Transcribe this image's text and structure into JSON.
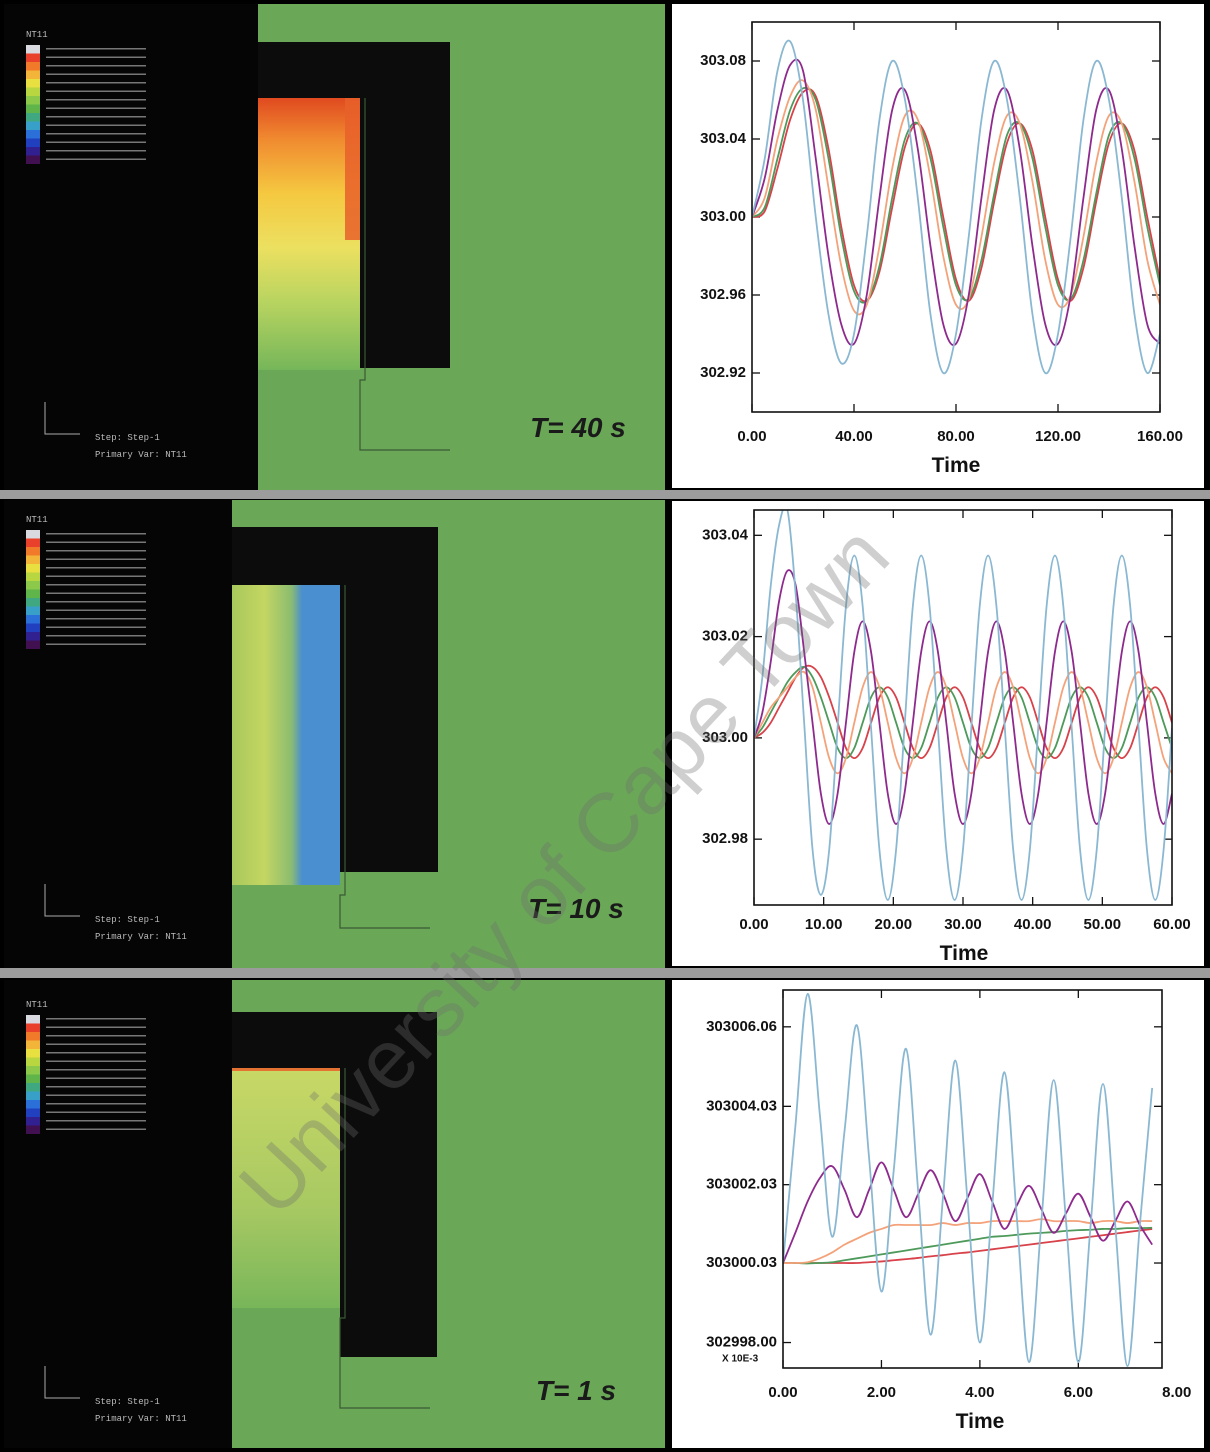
{
  "panels": [
    {
      "label": "T= 40 s",
      "legend_title": "NT11",
      "step": "Step: Step-1",
      "primary_var": "Primary Var: NT11"
    },
    {
      "label": "T= 10 s",
      "legend_title": "NT11",
      "step": "Step: Step-1",
      "primary_var": "Primary Var: NT11"
    },
    {
      "label": "T= 1 s",
      "legend_title": "NT11",
      "step": "Step: Step-1",
      "primary_var": "Primary Var: NT11"
    }
  ],
  "watermark": "University of Cape Town",
  "chart_data": [
    {
      "type": "line",
      "x_label": "Time",
      "x": [
        0,
        5,
        10,
        15,
        20,
        25,
        30,
        35,
        40,
        45,
        50,
        55,
        60,
        65,
        70,
        75,
        80,
        85,
        90,
        95,
        100,
        105,
        110,
        115,
        120,
        125,
        130,
        135,
        140,
        145,
        150,
        155,
        160
      ],
      "xlim": [
        0,
        160
      ],
      "xticks": [
        {
          "value": 0,
          "label": "0.00"
        },
        {
          "value": 40,
          "label": "40.00"
        },
        {
          "value": 80,
          "label": "80.00"
        },
        {
          "value": 120,
          "label": "120.00"
        },
        {
          "value": 160,
          "label": "160.00"
        }
      ],
      "ylim": [
        302.9,
        303.1
      ],
      "yticks": [
        302.92,
        302.96,
        {
          "value": 303,
          "label": "303.00"
        },
        303.04,
        303.08
      ],
      "series": [
        {
          "color": "#8ab8d2",
          "values": [
            303,
            303.03,
            303.075,
            303.09,
            303.06,
            303,
            302.95,
            302.925,
            302.94,
            302.99,
            303.05,
            303.08,
            303.06,
            303.01,
            302.95,
            302.92,
            302.94,
            302.99,
            303.05,
            303.08,
            303.06,
            303.01,
            302.95,
            302.92,
            302.94,
            302.99,
            303.05,
            303.08,
            303.06,
            303.01,
            302.95,
            302.92,
            302.94
          ]
        },
        {
          "color": "#8e2a8e",
          "values": [
            303,
            303.02,
            303.055,
            303.078,
            303.075,
            303.03,
            302.98,
            302.945,
            302.935,
            302.96,
            303.01,
            303.055,
            303.065,
            303.035,
            302.985,
            302.945,
            302.935,
            302.96,
            303.01,
            303.055,
            303.065,
            303.035,
            302.985,
            302.945,
            302.935,
            302.96,
            303.01,
            303.055,
            303.065,
            303.035,
            302.985,
            302.945,
            302.935
          ]
        },
        {
          "color": "#f4a27a",
          "values": [
            303,
            303.01,
            303.04,
            303.062,
            303.07,
            303.055,
            303.015,
            302.975,
            302.952,
            302.955,
            302.985,
            303.025,
            303.052,
            303.05,
            303.02,
            302.98,
            302.955,
            302.958,
            302.99,
            303.028,
            303.052,
            303.048,
            303.018,
            302.978,
            302.955,
            302.96,
            302.99,
            303.028,
            303.052,
            303.048,
            303.018,
            302.978,
            302.955
          ]
        },
        {
          "color": "#4e9a5a",
          "values": [
            303,
            303.005,
            303.03,
            303.055,
            303.066,
            303.06,
            303.03,
            302.99,
            302.962,
            302.957,
            302.975,
            303.01,
            303.04,
            303.048,
            303.03,
            302.995,
            302.965,
            302.958,
            302.978,
            303.012,
            303.042,
            303.048,
            303.03,
            302.995,
            302.965,
            302.958,
            302.978,
            303.012,
            303.042,
            303.048,
            303.03,
            302.995,
            302.965
          ]
        },
        {
          "color": "#d8424a",
          "values": [
            303,
            303.003,
            303.025,
            303.05,
            303.064,
            303.062,
            303.035,
            302.995,
            302.965,
            302.957,
            302.972,
            303.005,
            303.036,
            303.048,
            303.034,
            303,
            302.968,
            302.957,
            302.974,
            303.008,
            303.038,
            303.048,
            303.034,
            303,
            302.968,
            302.957,
            302.974,
            303.008,
            303.038,
            303.048,
            303.034,
            303,
            302.968
          ]
        }
      ]
    },
    {
      "type": "line",
      "x_label": "Time",
      "x": [
        0,
        1.2,
        2.4,
        3.6,
        4.8,
        6,
        7.2,
        8.4,
        9.6,
        10.8,
        12,
        13.2,
        14.4,
        15.6,
        16.8,
        18,
        19.2,
        20.4,
        21.6,
        22.8,
        24,
        25.2,
        26.4,
        27.6,
        28.8,
        30,
        31.2,
        32.4,
        33.6,
        34.8,
        36,
        37.2,
        38.4,
        39.6,
        40.8,
        42,
        43.2,
        44.4,
        45.6,
        46.8,
        48,
        49.2,
        50.4,
        51.6,
        52.8,
        54,
        55.2,
        56.4,
        57.6,
        58.8,
        60
      ],
      "xlim": [
        0,
        60
      ],
      "xticks": [
        {
          "value": 0,
          "label": "0.00"
        },
        {
          "value": 10,
          "label": "10.00"
        },
        {
          "value": 20,
          "label": "20.00"
        },
        {
          "value": 30,
          "label": "30.00"
        },
        {
          "value": 40,
          "label": "40.00"
        },
        {
          "value": 50,
          "label": "50.00"
        },
        {
          "value": 60,
          "label": "60.00"
        }
      ],
      "ylim": [
        302.967,
        303.045
      ],
      "yticks": [
        302.98,
        {
          "value": 303,
          "label": "303.00"
        },
        303.02,
        303.04
      ],
      "series": [
        {
          "color": "#8ab8d2",
          "values": [
            303,
            303.012,
            303.03,
            303.042,
            303.045,
            303.028,
            303.003,
            302.978,
            302.969,
            302.978,
            303.002,
            303.026,
            303.036,
            303.026,
            303.002,
            302.978,
            302.968,
            302.978,
            303.002,
            303.026,
            303.036,
            303.026,
            303.002,
            302.978,
            302.968,
            302.978,
            303.002,
            303.026,
            303.036,
            303.026,
            303.002,
            302.978,
            302.968,
            302.978,
            303.002,
            303.026,
            303.036,
            303.026,
            303.002,
            302.978,
            302.968,
            302.978,
            303.002,
            303.026,
            303.036,
            303.026,
            303.002,
            302.978,
            302.968,
            302.978,
            303.002
          ]
        },
        {
          "color": "#8e2a8e",
          "values": [
            303,
            303.005,
            303.015,
            303.027,
            303.033,
            303.03,
            303.017,
            303.003,
            302.989,
            302.983,
            302.989,
            303.003,
            303.017,
            303.023,
            303.017,
            303.003,
            302.989,
            302.983,
            302.989,
            303.003,
            303.017,
            303.023,
            303.017,
            303.003,
            302.989,
            302.983,
            302.989,
            303.003,
            303.017,
            303.023,
            303.017,
            303.003,
            302.989,
            302.983,
            302.989,
            303.003,
            303.017,
            303.023,
            303.017,
            303.003,
            302.989,
            302.983,
            302.989,
            303.003,
            303.017,
            303.023,
            303.017,
            303.003,
            302.989,
            302.983,
            302.989
          ]
        },
        {
          "color": "#f4a27a",
          "values": [
            303,
            303.003,
            303.006,
            303.008,
            303.01,
            303.012,
            303.013,
            303.01,
            303.003,
            302.996,
            302.993,
            302.996,
            303.003,
            303.01,
            303.013,
            303.01,
            303.003,
            302.996,
            302.993,
            302.996,
            303.003,
            303.01,
            303.013,
            303.01,
            303.003,
            302.996,
            302.993,
            302.996,
            303.003,
            303.01,
            303.013,
            303.01,
            303.003,
            302.996,
            302.993,
            302.996,
            303.003,
            303.01,
            303.013,
            303.01,
            303.003,
            302.996,
            302.993,
            302.996,
            303.003,
            303.01,
            303.013,
            303.01,
            303.003,
            302.996,
            302.993
          ]
        },
        {
          "color": "#4e9a5a",
          "values": [
            303,
            303.002,
            303.005,
            303.008,
            303.011,
            303.013,
            303.014,
            303.012,
            303.008,
            303.003,
            302.998,
            302.996,
            302.998,
            303.003,
            303.008,
            303.01,
            303.008,
            303.003,
            302.998,
            302.996,
            302.998,
            303.003,
            303.008,
            303.01,
            303.008,
            303.003,
            302.998,
            302.996,
            302.998,
            303.003,
            303.008,
            303.01,
            303.008,
            303.003,
            302.998,
            302.996,
            302.998,
            303.003,
            303.008,
            303.01,
            303.008,
            303.003,
            302.998,
            302.996,
            302.998,
            303.003,
            303.008,
            303.01,
            303.008,
            303.003,
            302.998
          ]
        },
        {
          "color": "#d8424a",
          "values": [
            303,
            303.001,
            303.003,
            303.006,
            303.009,
            303.012,
            303.014,
            303.014,
            303.012,
            303.008,
            303.003,
            302.998,
            302.996,
            302.998,
            303.003,
            303.008,
            303.01,
            303.008,
            303.003,
            302.998,
            302.996,
            302.998,
            303.003,
            303.008,
            303.01,
            303.008,
            303.003,
            302.998,
            302.996,
            302.998,
            303.003,
            303.008,
            303.01,
            303.008,
            303.003,
            302.998,
            302.996,
            302.998,
            303.003,
            303.008,
            303.01,
            303.008,
            303.003,
            302.998,
            302.996,
            302.998,
            303.003,
            303.008,
            303.01,
            303.008,
            303.003
          ]
        }
      ]
    },
    {
      "type": "line",
      "x_label": "Time",
      "annotation": "X 10E-3",
      "x": [
        0,
        0.25,
        0.5,
        0.75,
        1,
        1.25,
        1.5,
        1.75,
        2,
        2.25,
        2.5,
        2.75,
        3,
        3.25,
        3.5,
        3.75,
        4,
        4.25,
        4.5,
        4.75,
        5,
        5.25,
        5.5,
        5.75,
        6,
        6.25,
        6.5,
        6.75,
        7,
        7.25,
        7.5
      ],
      "xlim": [
        0,
        7.7
      ],
      "xticks": [
        {
          "value": 0,
          "label": "0.00"
        },
        {
          "value": 2,
          "label": "2.00"
        },
        {
          "value": 4,
          "label": "4.00"
        },
        {
          "value": 6,
          "label": "6.00"
        },
        {
          "value": 8,
          "label": "8.00"
        }
      ],
      "ylim": [
        302997.35,
        303007
      ],
      "yticks": [
        {
          "value": 302998,
          "label": "302998.00"
        },
        303000.03,
        303002.03,
        303004.03,
        303006.06
      ],
      "series": [
        {
          "color": "#8ab8d2",
          "values": [
            303000.03,
            303003.5,
            303006.9,
            303003.8,
            303000.7,
            303003.4,
            303006.1,
            303002.7,
            302999.3,
            303002.4,
            303005.5,
            303001.8,
            302998.2,
            303001.7,
            303005.2,
            303001.6,
            302998,
            303001.5,
            303004.9,
            303001.2,
            302997.5,
            303001.1,
            303004.7,
            303001.1,
            302997.5,
            303001,
            303004.6,
            303001,
            302997.4,
            303001,
            303004.5
          ]
        },
        {
          "color": "#8e2a8e",
          "values": [
            303000.03,
            303000.8,
            303001.6,
            303002.2,
            303002.5,
            303001.9,
            303001.2,
            303001.9,
            303002.6,
            303001.9,
            303001.2,
            303001.8,
            303002.4,
            303001.8,
            303001.1,
            303001.7,
            303002.3,
            303001.6,
            303000.9,
            303001.5,
            303002,
            303001.4,
            303000.8,
            303001.3,
            303001.8,
            303001.2,
            303000.6,
            303001.1,
            303001.6,
            303001,
            303000.5
          ]
        },
        {
          "color": "#f4a27a",
          "values": [
            303000.03,
            303000.03,
            303000.05,
            303000.15,
            303000.3,
            303000.5,
            303000.65,
            303000.8,
            303000.9,
            303001,
            303001,
            303001,
            303001,
            303001.05,
            303001,
            303001.05,
            303001.05,
            303001.1,
            303001.1,
            303001.1,
            303001.1,
            303001.15,
            303001.1,
            303001.1,
            303001.1,
            303001.05,
            303001.1,
            303001.1,
            303001.05,
            303001.1,
            303001.1
          ]
        },
        {
          "color": "#4e9a5a",
          "values": [
            303000.03,
            303000.03,
            303000.02,
            303000.03,
            303000.05,
            303000.1,
            303000.15,
            303000.2,
            303000.25,
            303000.3,
            303000.35,
            303000.4,
            303000.45,
            303000.5,
            303000.55,
            303000.6,
            303000.65,
            303000.7,
            303000.72,
            303000.75,
            303000.78,
            303000.8,
            303000.82,
            303000.85,
            303000.87,
            303000.88,
            303000.9,
            303000.9,
            303000.92,
            303000.92,
            303000.93
          ]
        },
        {
          "color": "#d8424a",
          "values": [
            303000.03,
            303000.03,
            303000.03,
            303000.03,
            303000.03,
            303000.03,
            303000.03,
            303000.05,
            303000.07,
            303000.1,
            303000.13,
            303000.16,
            303000.2,
            303000.23,
            303000.27,
            303000.3,
            303000.34,
            303000.38,
            303000.42,
            303000.46,
            303000.5,
            303000.54,
            303000.58,
            303000.62,
            303000.66,
            303000.7,
            303000.74,
            303000.78,
            303000.82,
            303000.86,
            303000.9
          ]
        }
      ]
    }
  ]
}
